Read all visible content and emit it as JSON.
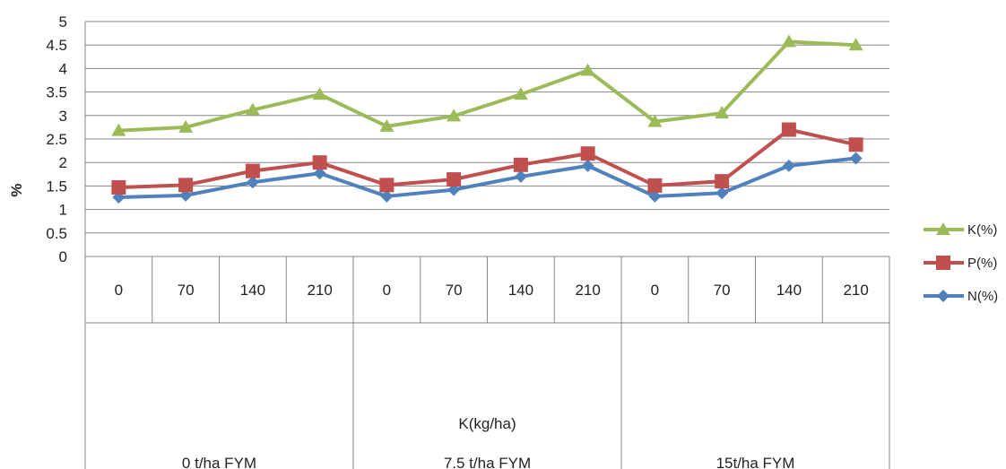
{
  "chart_data": {
    "type": "line",
    "xlabel": "K(kg/ha)",
    "ylabel": "%",
    "ylim": [
      0,
      5
    ],
    "yticks": [
      "0",
      "0.5",
      "1",
      "1.5",
      "2",
      "2.5",
      "3",
      "3.5",
      "4",
      "4.5",
      "5"
    ],
    "categories": [
      "0",
      "70",
      "140",
      "210",
      "0",
      "70",
      "140",
      "210",
      "0",
      "70",
      "140",
      "210"
    ],
    "groups": [
      "0 t/ha FYM",
      "7.5 t/ha FYM",
      "15t/ha FYM"
    ],
    "grid": true,
    "legend_position": "right",
    "series": [
      {
        "name": "K(%)",
        "color": "#9bbb59",
        "marker": "triangle",
        "values": [
          2.68,
          2.75,
          3.12,
          3.45,
          2.77,
          2.99,
          3.45,
          3.96,
          2.87,
          3.05,
          4.57,
          4.5
        ]
      },
      {
        "name": "P(%)",
        "color": "#c0504d",
        "marker": "square",
        "values": [
          1.47,
          1.52,
          1.82,
          2.0,
          1.52,
          1.64,
          1.95,
          2.19,
          1.51,
          1.6,
          2.7,
          2.38
        ]
      },
      {
        "name": "N(%)",
        "color": "#4f81bd",
        "marker": "diamond",
        "values": [
          1.26,
          1.3,
          1.58,
          1.77,
          1.28,
          1.42,
          1.7,
          1.93,
          1.28,
          1.35,
          1.93,
          2.09
        ]
      }
    ]
  }
}
